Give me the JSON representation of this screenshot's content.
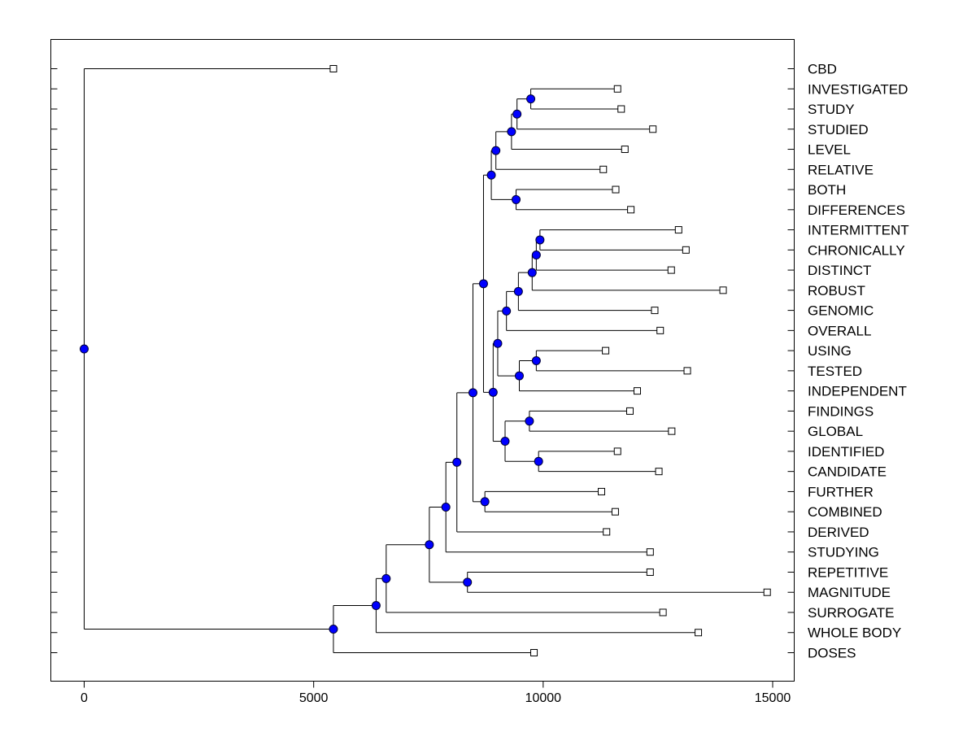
{
  "chart_data": {
    "type": "dendrogram",
    "title": "",
    "xlabel": "",
    "ylabel": "",
    "xlim": [
      -750,
      15500
    ],
    "x_ticks": [
      "0",
      "5000",
      "10000",
      "15000"
    ],
    "x_tick_values": [
      0,
      5000,
      10000,
      15000
    ],
    "grid": false,
    "legend": "none",
    "colors": {
      "node": "#0000ff",
      "line": "#000000",
      "leaf": "#ffffff"
    },
    "leaves": [
      {
        "name": "CBD",
        "x": 5430
      },
      {
        "name": "INVESTIGATED",
        "x": 11620
      },
      {
        "name": "STUDY",
        "x": 11700
      },
      {
        "name": "STUDIED",
        "x": 12390
      },
      {
        "name": "LEVEL",
        "x": 11780
      },
      {
        "name": "RELATIVE",
        "x": 11310
      },
      {
        "name": "BOTH",
        "x": 11580
      },
      {
        "name": "DIFFERENCES",
        "x": 11910
      },
      {
        "name": "INTERMITTENT",
        "x": 12950
      },
      {
        "name": "CHRONICALLY",
        "x": 13110
      },
      {
        "name": "DISTINCT",
        "x": 12790
      },
      {
        "name": "ROBUST",
        "x": 13920
      },
      {
        "name": "GENOMIC",
        "x": 12430
      },
      {
        "name": "OVERALL",
        "x": 12550
      },
      {
        "name": "USING",
        "x": 11360
      },
      {
        "name": "TESTED",
        "x": 13140
      },
      {
        "name": "INDEPENDENT",
        "x": 12050
      },
      {
        "name": "FINDINGS",
        "x": 11890
      },
      {
        "name": "GLOBAL",
        "x": 12800
      },
      {
        "name": "IDENTIFIED",
        "x": 11620
      },
      {
        "name": "CANDIDATE",
        "x": 12520
      },
      {
        "name": "FURTHER",
        "x": 11270
      },
      {
        "name": "COMBINED",
        "x": 11570
      },
      {
        "name": "DERIVED",
        "x": 11380
      },
      {
        "name": "STUDYING",
        "x": 12330
      },
      {
        "name": "REPETITIVE",
        "x": 12330
      },
      {
        "name": "MAGNITUDE",
        "x": 14880
      },
      {
        "name": "SURROGATE",
        "x": 12610
      },
      {
        "name": "WHOLE BODY",
        "x": 13380
      },
      {
        "name": "DOSES",
        "x": 9800
      }
    ],
    "merges": [
      {
        "id": "a",
        "x": 9730,
        "children": [
          1,
          2
        ]
      },
      {
        "id": "b",
        "x": 9430,
        "children": [
          "a",
          3
        ]
      },
      {
        "id": "c",
        "x": 9310,
        "children": [
          "b",
          4
        ]
      },
      {
        "id": "d",
        "x": 8970,
        "children": [
          "c",
          5
        ]
      },
      {
        "id": "e",
        "x": 9410,
        "children": [
          6,
          7
        ]
      },
      {
        "id": "f",
        "x": 8870,
        "children": [
          "d",
          "e"
        ]
      },
      {
        "id": "g",
        "x": 9930,
        "children": [
          8,
          9
        ]
      },
      {
        "id": "h",
        "x": 9850,
        "children": [
          "g",
          10
        ]
      },
      {
        "id": "i",
        "x": 9760,
        "children": [
          "h",
          11
        ]
      },
      {
        "id": "j",
        "x": 9460,
        "children": [
          "i",
          12
        ]
      },
      {
        "id": "k",
        "x": 9200,
        "children": [
          "j",
          13
        ]
      },
      {
        "id": "l",
        "x": 9850,
        "children": [
          14,
          15
        ]
      },
      {
        "id": "m",
        "x": 9480,
        "children": [
          "l",
          16
        ]
      },
      {
        "id": "n",
        "x": 9010,
        "children": [
          "k",
          "m"
        ]
      },
      {
        "id": "o",
        "x": 9700,
        "children": [
          17,
          18
        ]
      },
      {
        "id": "p",
        "x": 9900,
        "children": [
          19,
          20
        ]
      },
      {
        "id": "q",
        "x": 9170,
        "children": [
          "o",
          "p"
        ]
      },
      {
        "id": "r",
        "x": 8910,
        "children": [
          "n",
          "q"
        ]
      },
      {
        "id": "s",
        "x": 8700,
        "children": [
          "f",
          "r"
        ]
      },
      {
        "id": "t",
        "x": 8730,
        "children": [
          21,
          22
        ]
      },
      {
        "id": "u",
        "x": 8470,
        "children": [
          "s",
          "t"
        ]
      },
      {
        "id": "v",
        "x": 8120,
        "children": [
          "u",
          23
        ]
      },
      {
        "id": "w",
        "x": 7880,
        "children": [
          "v",
          24
        ]
      },
      {
        "id": "x",
        "x": 8350,
        "children": [
          25,
          26
        ]
      },
      {
        "id": "y",
        "x": 7520,
        "children": [
          "w",
          "x"
        ]
      },
      {
        "id": "z",
        "x": 6580,
        "children": [
          "y",
          27
        ]
      },
      {
        "id": "aa",
        "x": 6360,
        "children": [
          "z",
          28
        ]
      },
      {
        "id": "ab",
        "x": 5430,
        "children": [
          "aa",
          29
        ]
      },
      {
        "id": "root",
        "x": 0,
        "children": [
          0,
          "ab"
        ]
      }
    ]
  }
}
